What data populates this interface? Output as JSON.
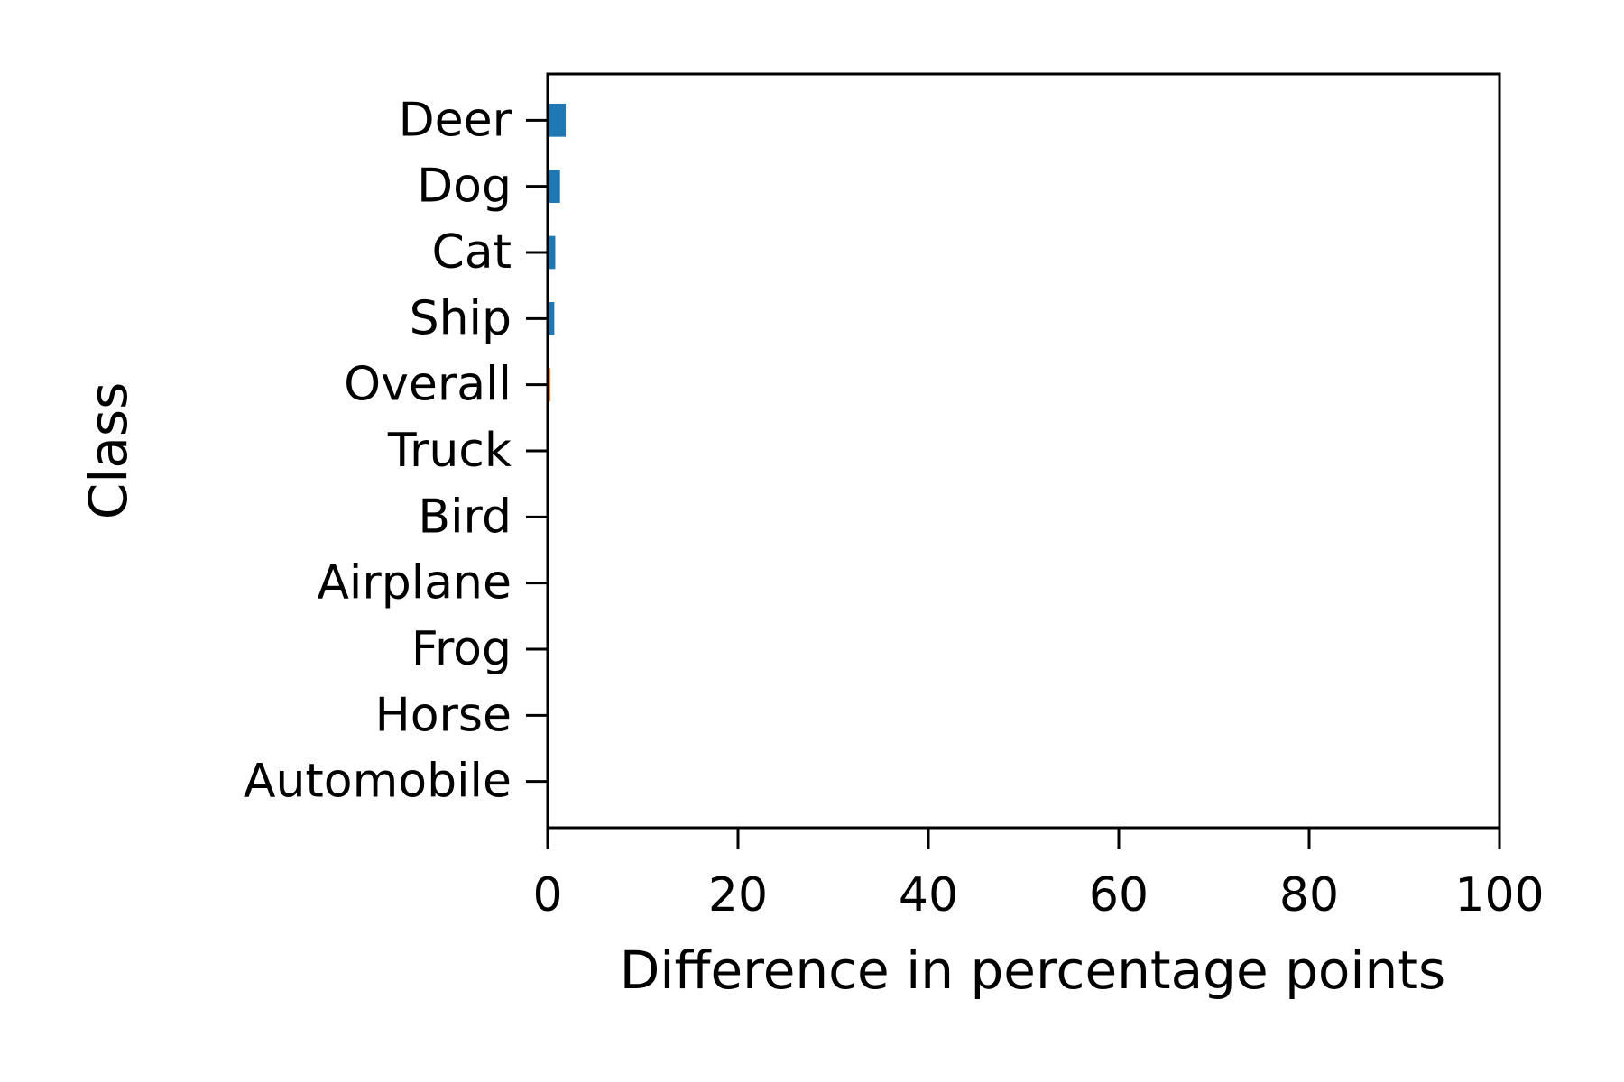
{
  "chart_data": {
    "type": "bar",
    "orientation": "horizontal",
    "title": "",
    "xlabel": "Difference in percentage points",
    "ylabel": "Class",
    "xlim": [
      0,
      100
    ],
    "x_ticks": [
      0,
      20,
      40,
      60,
      80,
      100
    ],
    "grid": false,
    "categories": [
      "Deer",
      "Dog",
      "Cat",
      "Ship",
      "Overall",
      "Truck",
      "Bird",
      "Airplane",
      "Frog",
      "Horse",
      "Automobile"
    ],
    "values": [
      1.9,
      1.3,
      0.8,
      0.7,
      0.3,
      0.0,
      0.0,
      0.0,
      0.0,
      0.0,
      0.0
    ],
    "bar_colors": [
      "#1f77b4",
      "#1f77b4",
      "#1f77b4",
      "#1f77b4",
      "#ff7f0e",
      "#1f77b4",
      "#1f77b4",
      "#1f77b4",
      "#1f77b4",
      "#1f77b4",
      "#1f77b4"
    ]
  }
}
